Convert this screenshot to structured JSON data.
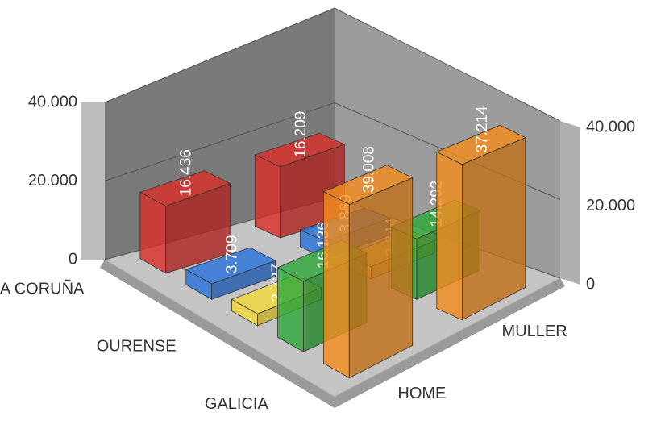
{
  "chart_data": {
    "type": "bar3d",
    "categories": [
      "A CORUÑA",
      null,
      "OURENSE",
      null,
      "GALICIA"
    ],
    "colors": [
      "#d9302a",
      "#2a73d9",
      "#f2d93a",
      "#2fa83a",
      "#f28c1e"
    ],
    "series": [
      {
        "name": "HOME",
        "values": [
          16436,
          3709,
          2727,
          16136,
          39008
        ],
        "value_labels": [
          "16.436",
          "3.709",
          "2.727",
          "16.136",
          "39.008"
        ]
      },
      {
        "name": "MULLER",
        "values": [
          16209,
          3869,
          2844,
          14292,
          37214
        ],
        "value_labels": [
          "16.209",
          "3.869",
          "2.844",
          "14.292",
          "37.214"
        ]
      }
    ],
    "ylim": [
      0,
      40000
    ],
    "yticks": [
      0,
      {
        "value": 20000,
        "label": "20.000"
      },
      {
        "value": 40000,
        "label": "40.000"
      }
    ],
    "grid": true
  }
}
